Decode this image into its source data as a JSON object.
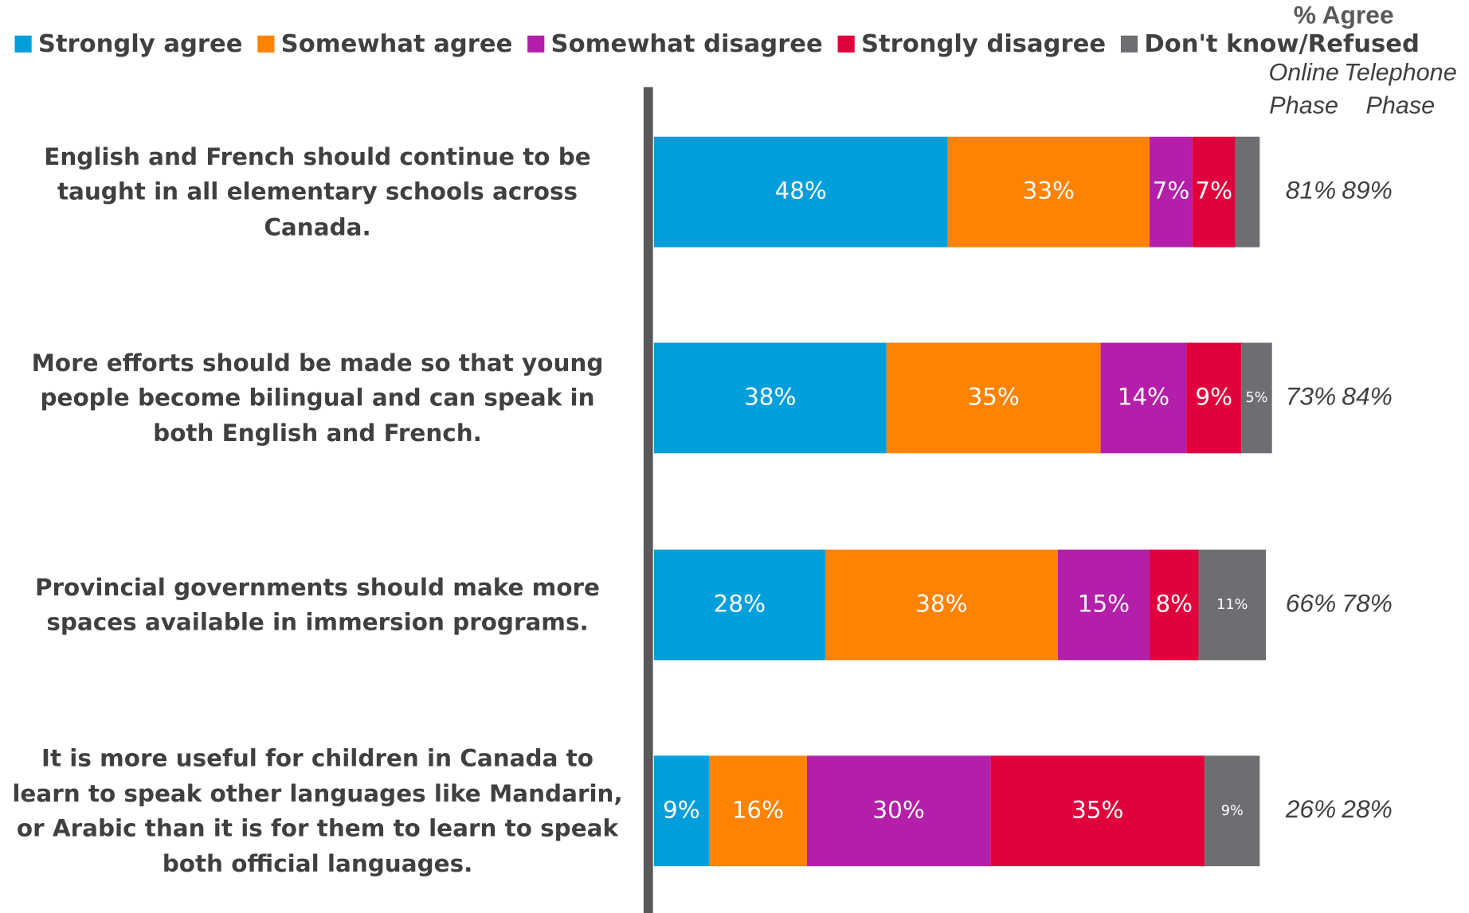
{
  "chart_data": {
    "type": "stacked-bar-horizontal",
    "categories": [
      "English and French should continue to be taught in all elementary schools across Canada.",
      "More efforts should be made so that young people become bilingual and can speak in both English and French.",
      "Provincial governments should make more spaces available in immersion programs.",
      "It is more useful for children in Canada to learn to speak other languages like Mandarin, or Arabic than it is for them to learn to speak both official languages."
    ],
    "series": [
      {
        "name": "Strongly agree",
        "color": "#009fdb",
        "values": [
          48,
          38,
          28,
          9
        ],
        "value_labels": [
          "48%",
          "38%",
          "28%",
          "9%"
        ]
      },
      {
        "name": "Somewhat agree",
        "color": "#ff8200",
        "values": [
          33,
          35,
          38,
          16
        ],
        "value_labels": [
          "33%",
          "35%",
          "38%",
          "16%"
        ]
      },
      {
        "name": "Somewhat disagree",
        "color": "#b31fa8",
        "values": [
          7,
          14,
          15,
          30
        ],
        "value_labels": [
          "7%",
          "14%",
          "15%",
          "30%"
        ]
      },
      {
        "name": "Strongly disagree",
        "color": "#e0003c",
        "values": [
          7,
          9,
          8,
          35
        ],
        "value_labels": [
          "7%",
          "9%",
          "8%",
          "35%"
        ]
      },
      {
        "name": "Don't know/Refused",
        "color": "#6d6e71",
        "values": [
          4,
          5,
          11,
          9
        ],
        "value_labels": [
          null,
          "5%",
          "11%",
          "9%"
        ]
      }
    ],
    "xlim": [
      0,
      100
    ],
    "agree_header": "% Agree",
    "online_header": "Online Phase",
    "telephone_header": "Telephone Phase",
    "online_agree": [
      "81%",
      "73%",
      "66%",
      "26%"
    ],
    "telephone_agree": [
      "89%",
      "84%",
      "78%",
      "28%"
    ],
    "legend": "top"
  }
}
